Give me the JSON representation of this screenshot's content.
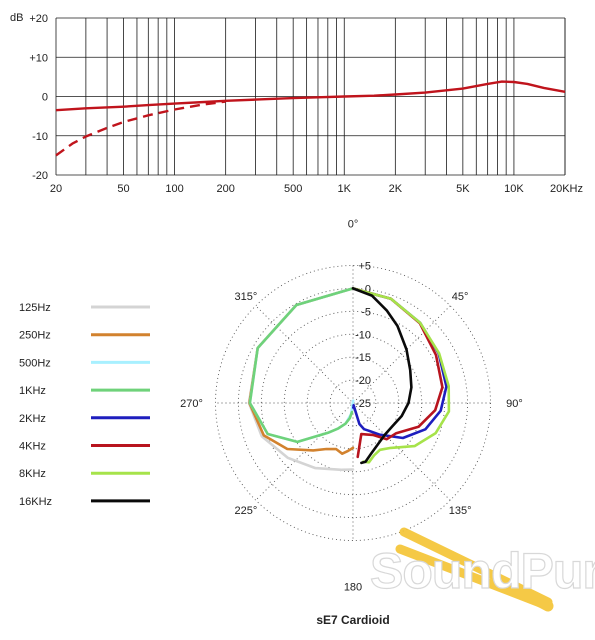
{
  "chart_data": [
    {
      "type": "line",
      "title": "",
      "xlabel": "",
      "ylabel": "dB",
      "x_scale": "log",
      "xlim": [
        20,
        20000
      ],
      "ylim": [
        -20,
        20
      ],
      "grid": true,
      "x_tick_labels": [
        {
          "v": 20,
          "label": "20"
        },
        {
          "v": 50,
          "label": "50"
        },
        {
          "v": 100,
          "label": "100"
        },
        {
          "v": 200,
          "label": "200"
        },
        {
          "v": 500,
          "label": "500"
        },
        {
          "v": 1000,
          "label": "1K"
        },
        {
          "v": 2000,
          "label": "2K"
        },
        {
          "v": 5000,
          "label": "5K"
        },
        {
          "v": 10000,
          "label": "10K"
        },
        {
          "v": 20000,
          "label": "20KHz"
        }
      ],
      "y_tick_labels": [
        {
          "v": 20,
          "label": "+20"
        },
        {
          "v": 10,
          "label": "+10"
        },
        {
          "v": 0,
          "label": "0"
        },
        {
          "v": -10,
          "label": "-10"
        },
        {
          "v": -20,
          "label": "-20"
        }
      ],
      "series": [
        {
          "style": "solid",
          "color": "#c0141c",
          "points": [
            [
              20,
              -3.5
            ],
            [
              30,
              -3.0
            ],
            [
              50,
              -2.6
            ],
            [
              70,
              -2.2
            ],
            [
              100,
              -1.8
            ],
            [
              150,
              -1.4
            ],
            [
              200,
              -1.1
            ],
            [
              300,
              -0.8
            ],
            [
              500,
              -0.4
            ],
            [
              700,
              -0.2
            ],
            [
              1000,
              0
            ],
            [
              1500,
              0.2
            ],
            [
              2000,
              0.5
            ],
            [
              3000,
              1.0
            ],
            [
              5000,
              2.0
            ],
            [
              7000,
              3.2
            ],
            [
              8500,
              3.8
            ],
            [
              10000,
              3.7
            ],
            [
              12000,
              3.2
            ],
            [
              15000,
              2.2
            ],
            [
              20000,
              1.2
            ]
          ]
        },
        {
          "style": "dashed",
          "color": "#c0141c",
          "points": [
            [
              20,
              -15
            ],
            [
              25,
              -12
            ],
            [
              30,
              -10.2
            ],
            [
              40,
              -8
            ],
            [
              50,
              -6.5
            ],
            [
              70,
              -4.8
            ],
            [
              100,
              -3.3
            ],
            [
              150,
              -2.0
            ],
            [
              200,
              -1.3
            ]
          ]
        }
      ]
    },
    {
      "type": "polar",
      "title": "sE7  Cardioid",
      "r_range": [
        -25,
        5
      ],
      "r_tick_labels": [
        "+5",
        "0",
        "-5",
        "-10",
        "-15",
        "-20",
        "-25"
      ],
      "angle_labels": [
        {
          "deg": 0,
          "label": "0°"
        },
        {
          "deg": 45,
          "label": "45°"
        },
        {
          "deg": 90,
          "label": "90°"
        },
        {
          "deg": 135,
          "label": "135°"
        },
        {
          "deg": 180,
          "label": "180"
        },
        {
          "deg": 225,
          "label": "225°"
        },
        {
          "deg": 270,
          "label": "270°"
        },
        {
          "deg": 315,
          "label": "315°"
        }
      ],
      "series": [
        {
          "name": "125Hz",
          "color": "#d4d4d4",
          "side": "left",
          "points": [
            [
              0,
              0
            ],
            [
              30,
              -0.3
            ],
            [
              60,
              -1
            ],
            [
              90,
              -2.3
            ],
            [
              110,
              -3.8
            ],
            [
              130,
              -6.4
            ],
            [
              150,
              -8.6
            ],
            [
              170,
              -10.2
            ],
            [
              180,
              -10.5
            ]
          ]
        },
        {
          "name": "250Hz",
          "color": "#d2822e",
          "side": "left",
          "points": [
            [
              0,
              0
            ],
            [
              30,
              -0.3
            ],
            [
              60,
              -1
            ],
            [
              90,
              -2.4
            ],
            [
              110,
              -4.3
            ],
            [
              125,
              -7.5
            ],
            [
              140,
              -11.5
            ],
            [
              150,
              -13.4
            ],
            [
              160,
              -14.3
            ],
            [
              168,
              -13.7
            ],
            [
              174,
              -14.5
            ],
            [
              180,
              -15.2
            ]
          ]
        },
        {
          "name": "500Hz",
          "color": "#a8f0ff",
          "side": "left",
          "points": [
            [
              0,
              0
            ],
            [
              30,
              -0.3
            ],
            [
              60,
              -1
            ],
            [
              90,
              -2.5
            ],
            [
              110,
              -5.2
            ],
            [
              125,
              -10.2
            ],
            [
              140,
              -16.5
            ],
            [
              150,
              -18.6
            ],
            [
              160,
              -20.2
            ],
            [
              170,
              -22.5
            ],
            [
              176,
              -25.5
            ]
          ]
        },
        {
          "name": "1KHz",
          "color": "#6fd27a",
          "side": "left",
          "points": [
            [
              0,
              0
            ],
            [
              30,
              -0.3
            ],
            [
              60,
              -1
            ],
            [
              90,
              -2.5
            ],
            [
              110,
              -5.2
            ],
            [
              125,
              -10.2
            ],
            [
              140,
              -16.5
            ],
            [
              150,
              -18.6
            ],
            [
              160,
              -20.2
            ],
            [
              168,
              -21.6
            ],
            [
              174,
              -23.0
            ]
          ]
        },
        {
          "name": "2KHz",
          "color": "#1e1ebe",
          "side": "right",
          "points": [
            [
              0,
              0
            ],
            [
              20,
              -0.8
            ],
            [
              40,
              -2.2
            ],
            [
              60,
              -3.4
            ],
            [
              80,
              -4.3
            ],
            [
              95,
              -5.8
            ],
            [
              110,
              -8.2
            ],
            [
              125,
              -11.7
            ],
            [
              140,
              -16.0
            ],
            [
              150,
              -18.0
            ],
            [
              157,
              -18.8
            ],
            [
              163,
              -20.2
            ],
            [
              166,
              -24.5
            ],
            [
              172,
              -24.0
            ],
            [
              176,
              -24.0
            ]
          ]
        },
        {
          "name": "4KHz",
          "color": "#b8141e",
          "side": "right",
          "points": [
            [
              0,
              0
            ],
            [
              20,
              -0.8
            ],
            [
              40,
              -2.3
            ],
            [
              60,
              -4.1
            ],
            [
              80,
              -5.2
            ],
            [
              95,
              -7.0
            ],
            [
              110,
              -9.8
            ],
            [
              125,
              -13.5
            ],
            [
              137,
              -14.2
            ],
            [
              148,
              -16.8
            ],
            [
              158,
              -17.6
            ],
            [
              165,
              -18.0
            ],
            [
              175,
              -13.2
            ]
          ]
        },
        {
          "name": "8KHz",
          "color": "#a6e34a",
          "side": "right",
          "points": [
            [
              0,
              0
            ],
            [
              20,
              -0.8
            ],
            [
              40,
              -2.2
            ],
            [
              60,
              -3.3
            ],
            [
              80,
              -3.8
            ],
            [
              95,
              -4.0
            ],
            [
              110,
              -5.8
            ],
            [
              125,
              -8.6
            ],
            [
              140,
              -12.2
            ],
            [
              150,
              -13.2
            ],
            [
              158,
              -12.7
            ],
            [
              165,
              -11.6
            ],
            [
              170,
              -12.0
            ]
          ]
        },
        {
          "name": "16KHz",
          "color": "#0a0a0a",
          "side": "right",
          "points": [
            [
              0,
              0
            ],
            [
              10,
              -1.2
            ],
            [
              20,
              -3.5
            ],
            [
              30,
              -5.6
            ],
            [
              45,
              -8.5
            ],
            [
              60,
              -10.6
            ],
            [
              75,
              -11.8
            ],
            [
              90,
              -12.9
            ],
            [
              105,
              -14.0
            ],
            [
              120,
              -15.0
            ],
            [
              135,
              -15.2
            ],
            [
              150,
              -14.4
            ],
            [
              160,
              -13.3
            ],
            [
              168,
              -11.9
            ],
            [
              172,
              -11.8
            ]
          ]
        }
      ]
    }
  ],
  "watermark": "SoundPure"
}
